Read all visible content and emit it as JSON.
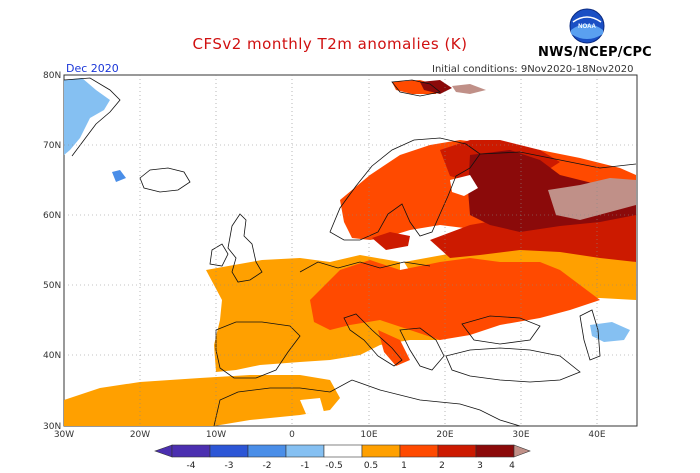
{
  "title": "CFSv2 monthly T2m anomalies (K)",
  "agency": "NWS/NCEP/CPC",
  "logo_text": "NOAA",
  "valid_month": "Dec 2020",
  "initial_conditions": "Initial conditions: 9Nov2020-18Nov2020",
  "axes": {
    "lat_labels": [
      "80N",
      "70N",
      "60N",
      "50N",
      "40N",
      "30N"
    ],
    "lon_labels": [
      "30W",
      "20W",
      "10W",
      "0",
      "10E",
      "20E",
      "30E",
      "40E"
    ]
  },
  "colorbar": {
    "labels": [
      "-4",
      "-3",
      "-2",
      "-1",
      "-0.5",
      "0.5",
      "1",
      "2",
      "3",
      "4"
    ],
    "colors": [
      "#4b2fb0",
      "#2c56d6",
      "#4a8ee8",
      "#85c0f2",
      "#ffffff",
      "#ffa000",
      "#ff4a00",
      "#cc1a00",
      "#8b0a0a",
      "#c09088"
    ]
  },
  "anomaly_legend": {
    "warm_1": "#ffa000",
    "warm_2": "#ff4a00",
    "warm_3": "#cc1a00",
    "warm_4": "#8b0a0a",
    "warm_5": "#c09088",
    "cool_1": "#85c0f2",
    "cool_2": "#4a8ee8"
  }
}
